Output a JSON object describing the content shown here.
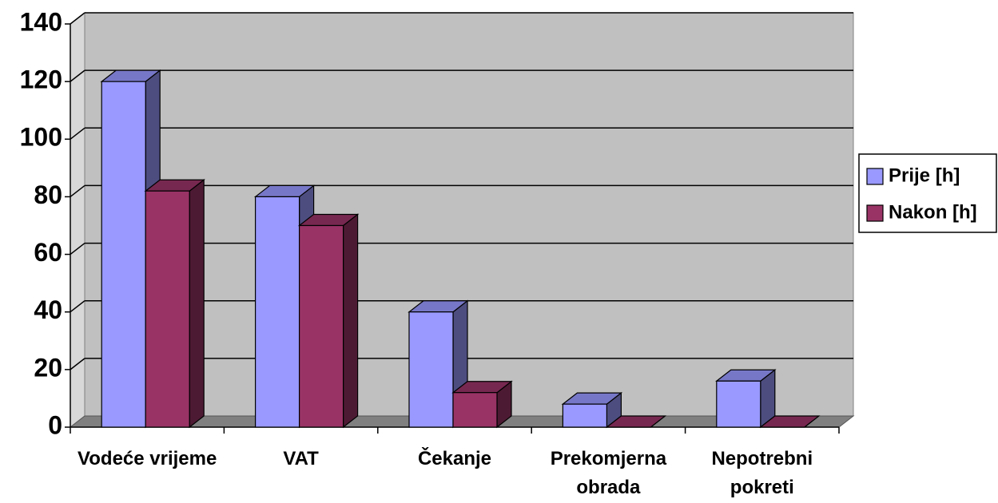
{
  "chart_data": {
    "type": "bar",
    "categories": [
      "Vodeće vrijeme",
      "VAT",
      "Čekanje",
      "Prekomjerna obrada",
      "Nepotrebni pokreti"
    ],
    "series": [
      {
        "name": "Prije [h]",
        "color": "#9999ff",
        "values": [
          120,
          80,
          40,
          8,
          16
        ]
      },
      {
        "name": "Nakon [h]",
        "color": "#993366",
        "values": [
          82,
          70,
          12,
          0,
          0
        ]
      }
    ],
    "ylim": [
      0,
      140
    ],
    "yticks": [
      0,
      20,
      40,
      60,
      80,
      100,
      120,
      140
    ],
    "grid": true,
    "legend": "right"
  }
}
